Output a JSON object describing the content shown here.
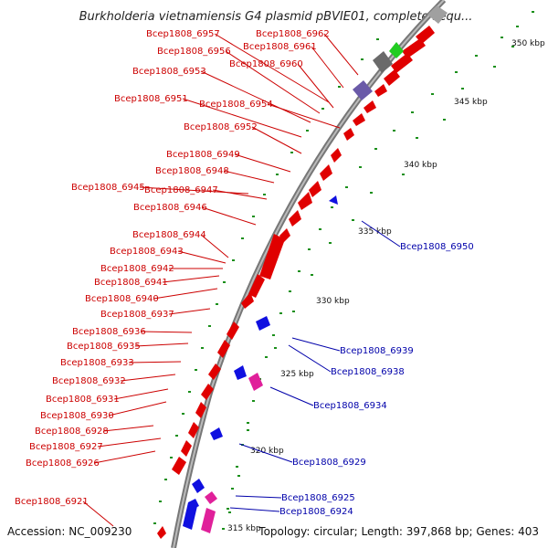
{
  "title": "Burkholderia vietnamiensis G4 plasmid pBVIE01, complete sequ...",
  "footer": {
    "accession": "Accession: NC_009230",
    "summary": "Topology: circular; Length: 397,868 bp; Genes: 403"
  },
  "colors": {
    "forward": "#e00000",
    "reverse": "#1010e0",
    "pink": "#e0209a",
    "label_forward": "#cc0000",
    "label_reverse": "#0000aa",
    "backbone": "#777777",
    "dots": "#1a8f1a"
  },
  "ticks": [
    "350 kbp",
    "345 kbp",
    "340 kbp",
    "335 kbp",
    "330 kbp",
    "325 kbp",
    "320 kbp",
    "315 kbp"
  ],
  "forward_labels": [
    "Bcep1808_6962",
    "Bcep1808_6957",
    "Bcep1808_6961",
    "Bcep1808_6956",
    "Bcep1808_6960",
    "Bcep1808_6953",
    "Bcep1808_6951",
    "Bcep1808_6954",
    "Bcep1808_6952",
    "Bcep1808_6949",
    "Bcep1808_6948",
    "Bcep1808_6945",
    "Bcep1808_6947",
    "Bcep1808_6946",
    "Bcep1808_6944",
    "Bcep1808_6943",
    "Bcep1808_6942",
    "Bcep1808_6941",
    "Bcep1808_6940",
    "Bcep1808_6937",
    "Bcep1808_6936",
    "Bcep1808_6935",
    "Bcep1808_6933",
    "Bcep1808_6932",
    "Bcep1808_6931",
    "Bcep1808_6930",
    "Bcep1808_6928",
    "Bcep1808_6927",
    "Bcep1808_6926",
    "Bcep1808_6921"
  ],
  "reverse_labels": [
    "Bcep1808_6950",
    "Bcep1808_6939",
    "Bcep1808_6938",
    "Bcep1808_6934",
    "Bcep1808_6929",
    "Bcep1808_6925",
    "Bcep1808_6924"
  ]
}
